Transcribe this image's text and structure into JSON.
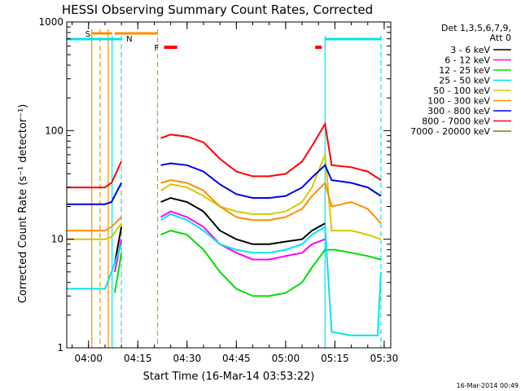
{
  "chart_data": {
    "type": "line",
    "title": "HESSI Observing Summary Count Rates, Corrected",
    "xlabel": "Start Time (16-Mar-14 03:53:22)",
    "ylabel": "Corrected Count Rate (s⁻¹ detector⁻¹)",
    "y_scale": "log",
    "ylim": [
      1,
      1000
    ],
    "xlim": [
      "03:53:22",
      "05:32:00"
    ],
    "x_ticks": [
      "04:00",
      "04:15",
      "04:30",
      "04:45",
      "05:00",
      "05:15",
      "05:30"
    ],
    "y_ticks": [
      "1",
      "10",
      "100",
      "1000"
    ],
    "legend_header": [
      "Det 1,3,5,6,7,9,",
      "Att 0"
    ],
    "legend_position": "right",
    "footer_date": "16-Mar-2014 00:49",
    "flag_labels": {
      "saa": "S",
      "night": "N",
      "flare": "F"
    },
    "flags": {
      "saa": {
        "color": "#ff8c00",
        "start": "03:59:00",
        "end": "04:07:10"
      },
      "saa_lines": [
        "04:01:00",
        "04:06:00"
      ],
      "saa_dashed": [
        "04:03:30",
        "04:21:00"
      ],
      "saa_bar2": {
        "start": "04:08:00",
        "end": "04:21:00"
      },
      "night": {
        "color": "#00e5ee",
        "ranges": [
          [
            "03:53:22",
            "04:10:00"
          ],
          [
            "05:12:00",
            "05:29:00"
          ]
        ]
      },
      "night_solid": [
        "04:07:10",
        "05:12:00"
      ],
      "night_dashed": [
        "04:10:00",
        "05:29:00"
      ],
      "flare": {
        "color": "#ff0000",
        "ranges": [
          [
            "04:23:00",
            "04:27:00"
          ],
          [
            "05:09:00",
            "05:11:00"
          ]
        ]
      }
    },
    "series": [
      {
        "name": "3 - 6 keV",
        "color": "#000000",
        "x": [
          "04:08:00",
          "04:10:00",
          "04:22:00",
          "04:25:00",
          "04:30:00",
          "04:35:00",
          "04:40:00",
          "04:45:00",
          "04:50:00",
          "04:55:00",
          "05:00:00",
          "05:05:00",
          "05:08:00",
          "05:12:00"
        ],
        "y": [
          6,
          13,
          22,
          24,
          22,
          18,
          12,
          10,
          9,
          9,
          9.5,
          10,
          12,
          14
        ]
      },
      {
        "name": "6 - 12 keV",
        "color": "#ff00ff",
        "x": [
          "04:08:00",
          "04:10:00",
          "04:22:00",
          "04:25:00",
          "04:30:00",
          "04:35:00",
          "04:40:00",
          "04:45:00",
          "04:50:00",
          "04:55:00",
          "05:00:00",
          "05:05:00",
          "05:08:00",
          "05:12:00"
        ],
        "y": [
          5,
          10,
          16,
          18,
          16,
          13,
          9,
          7.5,
          6.5,
          6.5,
          7,
          7.5,
          9,
          10
        ]
      },
      {
        "name": "12 - 25 keV",
        "color": "#00dd00",
        "x": [
          "04:08:00",
          "04:10:00",
          "04:22:00",
          "04:25:00",
          "04:30:00",
          "04:35:00",
          "04:40:00",
          "04:45:00",
          "04:50:00",
          "04:55:00",
          "05:00:00",
          "05:05:00",
          "05:08:00",
          "05:12:00",
          "05:15:00",
          "05:20:00",
          "05:25:00",
          "05:29:00"
        ],
        "y": [
          3.2,
          7.5,
          11,
          12,
          11,
          8,
          5,
          3.5,
          3,
          3,
          3.2,
          4,
          5.5,
          8,
          8,
          7.5,
          7,
          6.5
        ]
      },
      {
        "name": "25 - 50 keV",
        "color": "#00e5ee",
        "x": [
          "03:53:22",
          "04:00:00",
          "04:05:00",
          "04:07:00",
          "04:10:00",
          "04:22:00",
          "04:25:00",
          "04:30:00",
          "04:35:00",
          "04:40:00",
          "04:45:00",
          "04:50:00",
          "04:55:00",
          "05:00:00",
          "05:05:00",
          "05:08:00",
          "05:12:00",
          "05:14:00",
          "05:20:00",
          "05:28:00",
          "05:29:00"
        ],
        "y": [
          3.5,
          3.5,
          3.5,
          5,
          9,
          15,
          17,
          15,
          12,
          9,
          8,
          7.5,
          7.5,
          8,
          9,
          11,
          13,
          1.4,
          1.3,
          1.3,
          5
        ]
      },
      {
        "name": "50 - 100 keV",
        "color": "#cccc00",
        "x": [
          "03:53:22",
          "04:00:00",
          "04:05:00",
          "04:07:00",
          "04:10:00",
          "04:22:00",
          "04:25:00",
          "04:30:00",
          "04:35:00",
          "04:40:00",
          "04:45:00",
          "04:50:00",
          "04:55:00",
          "05:00:00",
          "05:05:00",
          "05:08:00",
          "05:12:00",
          "05:14:00",
          "05:20:00",
          "05:25:00",
          "05:29:00"
        ],
        "y": [
          10,
          10,
          10,
          10.5,
          14,
          28,
          32,
          30,
          25,
          20,
          18,
          17,
          17,
          18,
          22,
          30,
          60,
          12,
          12,
          11,
          10
        ]
      },
      {
        "name": "100 - 300 keV",
        "color": "#ff8c00",
        "x": [
          "03:53:22",
          "04:00:00",
          "04:05:00",
          "04:07:00",
          "04:10:00",
          "04:22:00",
          "04:25:00",
          "04:30:00",
          "04:35:00",
          "04:40:00",
          "04:45:00",
          "04:50:00",
          "04:55:00",
          "05:00:00",
          "05:05:00",
          "05:08:00",
          "05:12:00",
          "05:14:00",
          "05:20:00",
          "05:25:00",
          "05:29:00"
        ],
        "y": [
          12,
          12,
          12,
          13,
          16,
          33,
          35,
          33,
          28,
          20,
          16,
          15,
          15,
          16,
          19,
          25,
          33,
          20,
          22,
          19,
          14
        ]
      },
      {
        "name": "300 - 800 keV",
        "color": "#0000ee",
        "x": [
          "03:53:22",
          "04:00:00",
          "04:05:00",
          "04:07:00",
          "04:10:00",
          "04:22:00",
          "04:25:00",
          "04:30:00",
          "04:35:00",
          "04:40:00",
          "04:45:00",
          "04:50:00",
          "04:55:00",
          "05:00:00",
          "05:05:00",
          "05:08:00",
          "05:12:00",
          "05:14:00",
          "05:20:00",
          "05:25:00",
          "05:29:00"
        ],
        "y": [
          21,
          21,
          21,
          22,
          33,
          48,
          50,
          48,
          42,
          32,
          26,
          24,
          24,
          25,
          30,
          37,
          48,
          35,
          33,
          30,
          25
        ]
      },
      {
        "name": "800 - 7000 keV",
        "color": "#ff0000",
        "x": [
          "03:53:22",
          "04:00:00",
          "04:05:00",
          "04:07:00",
          "04:10:00",
          "04:22:00",
          "04:25:00",
          "04:30:00",
          "04:35:00",
          "04:40:00",
          "04:45:00",
          "04:50:00",
          "04:55:00",
          "05:00:00",
          "05:05:00",
          "05:08:00",
          "05:12:00",
          "05:14:00",
          "05:20:00",
          "05:25:00",
          "05:29:00"
        ],
        "y": [
          30,
          30,
          30,
          33,
          52,
          85,
          92,
          88,
          78,
          55,
          42,
          38,
          38,
          40,
          52,
          72,
          115,
          48,
          46,
          42,
          35
        ]
      },
      {
        "name": "7000 - 20000 keV",
        "color": "#808000",
        "x": [],
        "y": []
      }
    ]
  }
}
